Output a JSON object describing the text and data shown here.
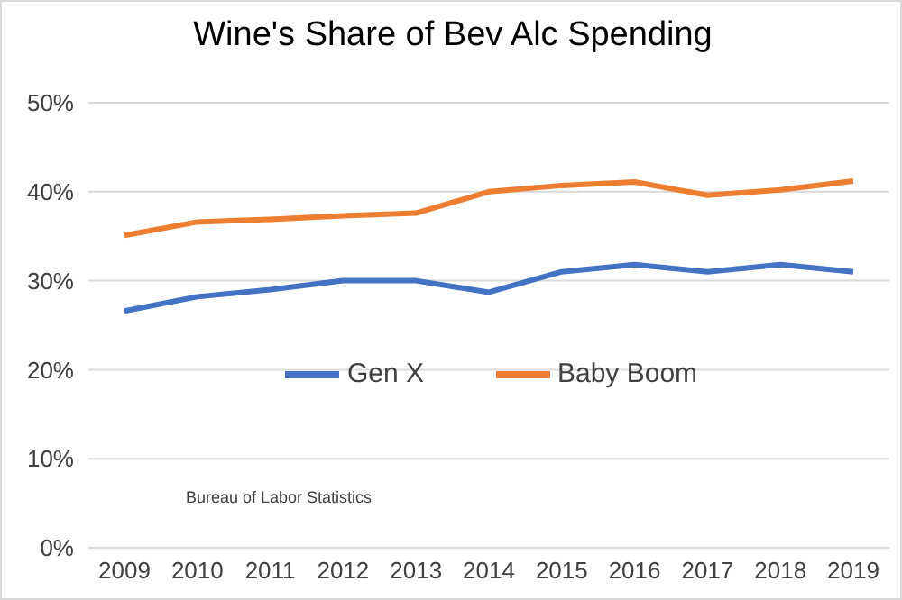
{
  "chart_data": {
    "type": "line",
    "title": "Wine's Share of Bev Alc Spending",
    "categories": [
      "2009",
      "2010",
      "2011",
      "2012",
      "2013",
      "2014",
      "2015",
      "2016",
      "2017",
      "2018",
      "2019"
    ],
    "series": [
      {
        "name": "Gen X",
        "color": "#4472c4",
        "values": [
          26.6,
          28.2,
          29.0,
          30.0,
          30.0,
          28.7,
          31.0,
          31.8,
          31.0,
          31.8,
          31.0
        ]
      },
      {
        "name": "Baby Boom",
        "color": "#ed7d31",
        "values": [
          35.1,
          36.6,
          36.9,
          37.3,
          37.6,
          40.0,
          40.7,
          41.1,
          39.6,
          40.2,
          41.2
        ]
      }
    ],
    "ylim": [
      0,
      50
    ],
    "yticks": [
      {
        "value": 0,
        "label": "0%"
      },
      {
        "value": 10,
        "label": "10%"
      },
      {
        "value": 20,
        "label": "20%"
      },
      {
        "value": 30,
        "label": "30%"
      },
      {
        "value": 40,
        "label": "40%"
      },
      {
        "value": 50,
        "label": "50%"
      }
    ],
    "grid": "y",
    "legend": "center",
    "marker": "none",
    "line_style": "solid",
    "annotations": [
      "Bureau of Labor Statistics"
    ]
  }
}
